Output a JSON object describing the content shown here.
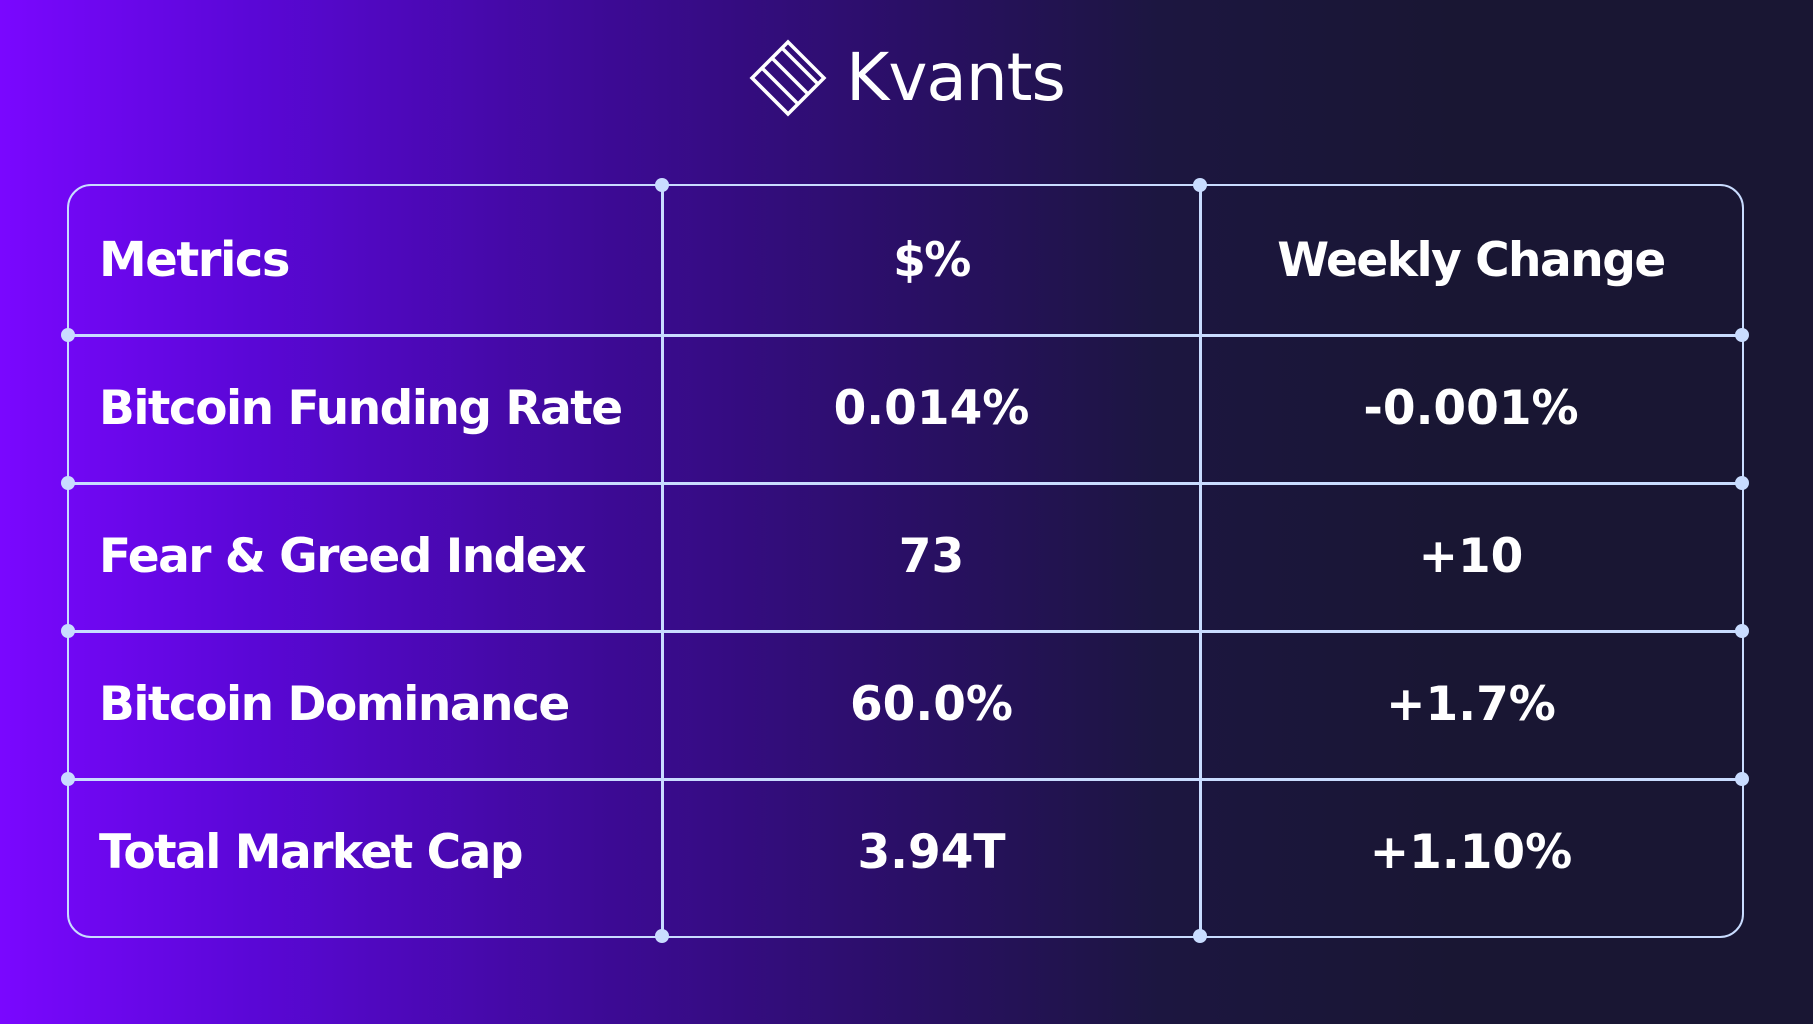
{
  "brand": {
    "name": "Kvants",
    "logo_icon": "diagonal-striped-diamond-icon"
  },
  "colors": {
    "grid_line": "#c9dcff",
    "text": "#ffffff",
    "gradient_left": "#7a07ff",
    "gradient_right": "#191633"
  },
  "table": {
    "headers": [
      "Metrics",
      "$%",
      "Weekly Change"
    ],
    "rows": [
      {
        "metric": "Bitcoin Funding Rate",
        "value": "0.014%",
        "change": "-0.001%"
      },
      {
        "metric": "Fear & Greed Index",
        "value": "73",
        "change": "+10"
      },
      {
        "metric": "Bitcoin Dominance",
        "value": "60.0%",
        "change": "+1.7%"
      },
      {
        "metric": "Total Market Cap",
        "value": "3.94T",
        "change": "+1.10%"
      }
    ]
  }
}
